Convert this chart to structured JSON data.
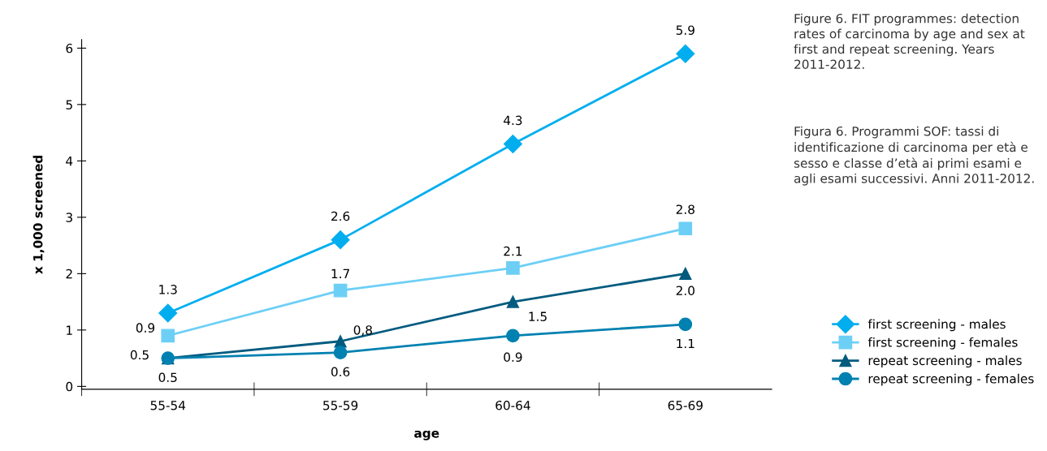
{
  "chart_data": {
    "type": "line",
    "xlabel": "age",
    "ylabel": "x 1,000 screened",
    "categories": [
      "55-54",
      "55-59",
      "60-64",
      "65-69"
    ],
    "series": [
      {
        "name": "first screening - males",
        "color": "#00aeef",
        "marker": "diamond",
        "values": [
          1.3,
          2.6,
          4.3,
          5.9
        ],
        "value_labels": [
          "1.3",
          "2.6",
          "4.3",
          "5.9"
        ]
      },
      {
        "name": "first screening - females",
        "color": "#6dcff6",
        "marker": "square",
        "values": [
          0.9,
          1.7,
          2.1,
          2.8
        ],
        "value_labels": [
          "0.9",
          "1.7",
          "2.1",
          "2.8"
        ]
      },
      {
        "name": "repeat screening - males",
        "color": "#005b7f",
        "marker": "triangle",
        "values": [
          0.5,
          0.8,
          1.5,
          2.0
        ],
        "value_labels": [
          "0.5",
          "0,8",
          "1.5",
          "2.0"
        ]
      },
      {
        "name": "repeat screening - females",
        "color": "#0081b1",
        "marker": "circle",
        "values": [
          0.5,
          0.6,
          0.9,
          1.1
        ],
        "value_labels": [
          "0.5",
          "0.6",
          "0.9",
          "1.1"
        ]
      }
    ],
    "ylim": [
      -0.05,
      6.15
    ],
    "yticks": [
      0,
      1,
      2,
      3,
      4,
      5,
      6
    ],
    "grid": false,
    "legend": "right",
    "line_style": "solid",
    "annotations": [
      "Figure 6. FIT programmes: detection rates of carcinoma by age and sex at first and repeat screening. Years 2011-2012.",
      "Figura 6. Programmi SOF: tassi di identificazione di carcinoma per età e sesso e classe d’età ai primi esami e agli esami successivi. Anni 2011-2012."
    ]
  }
}
